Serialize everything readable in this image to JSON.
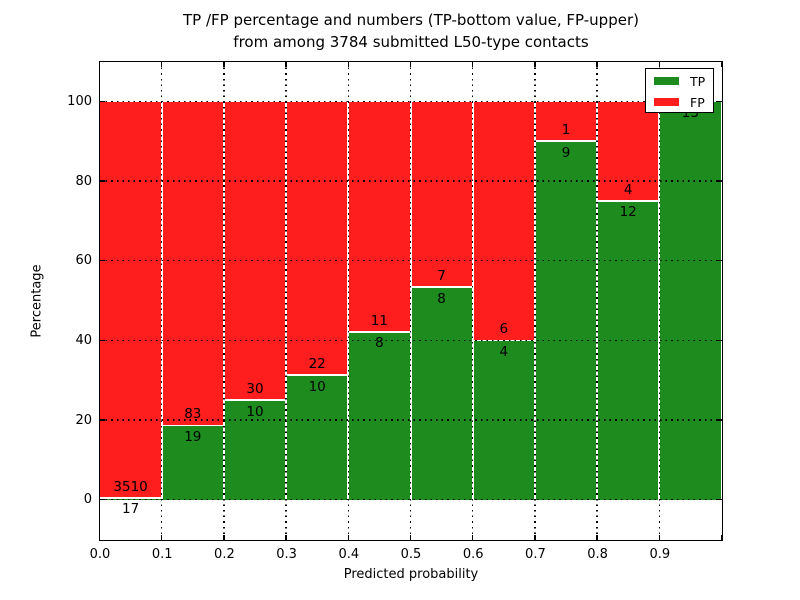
{
  "title": {
    "line1": "TP /FP percentage and numbers (TP-bottom value, FP-upper)",
    "line2": "from among 3784 submitted L50-type contacts"
  },
  "chart_data": {
    "type": "bar",
    "stacked_percentage": true,
    "title": "TP /FP percentage and numbers (TP-bottom value, FP-upper) from among 3784 submitted L50-type contacts",
    "xlabel": "Predicted probability",
    "ylabel": "Percentage",
    "total_contacts": 3784,
    "bins": {
      "start": 0.0,
      "end": 1.0,
      "width": 0.1
    },
    "series": [
      {
        "name": "TP",
        "color": "#1e8b1e",
        "counts": [
          17,
          19,
          10,
          10,
          8,
          8,
          4,
          9,
          12,
          13
        ],
        "percent": [
          0.48,
          18.63,
          25.0,
          31.25,
          42.11,
          53.33,
          40.0,
          90.0,
          75.0,
          100.0
        ]
      },
      {
        "name": "FP",
        "color": "#ff1e1e",
        "counts": [
          3510,
          83,
          30,
          22,
          11,
          7,
          6,
          1,
          4,
          0
        ],
        "percent": [
          99.52,
          81.37,
          75.0,
          68.75,
          57.89,
          46.67,
          60.0,
          10.0,
          25.0,
          0.0
        ]
      }
    ],
    "xticks": [
      "0.0",
      "0.1",
      "0.2",
      "0.3",
      "0.4",
      "0.5",
      "0.6",
      "0.7",
      "0.8",
      "0.9"
    ],
    "yticks": [
      "0",
      "20",
      "40",
      "60",
      "80",
      "100"
    ],
    "xlim": [
      0.0,
      1.0
    ],
    "ylim": [
      -10,
      110
    ],
    "grid": {
      "style": "dotted",
      "color": "#000000"
    },
    "bar_edge_color": "#ffffff",
    "legend": {
      "location": "upper right",
      "entries": [
        {
          "label": "TP",
          "color": "#1e8b1e"
        },
        {
          "label": "FP",
          "color": "#ff1e1e"
        }
      ]
    }
  }
}
